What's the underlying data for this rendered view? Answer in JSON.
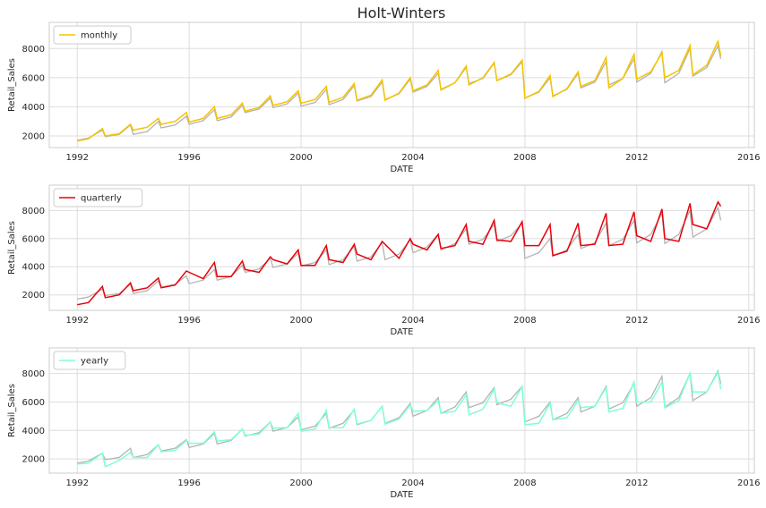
{
  "chart_data": {
    "type": "line",
    "title": "Holt-Winters",
    "source_color": "#b3b3b3",
    "xlim": [
      1991.0,
      2016.2
    ],
    "x_ticks": [
      1992,
      1996,
      2000,
      2004,
      2008,
      2012,
      2016
    ],
    "x_tick_labels": [
      "1992",
      "1996",
      "2000",
      "2004",
      "2008",
      "2012",
      "2016"
    ],
    "source_series": {
      "x": [
        1992.0,
        1992.4,
        1992.9,
        1993.0,
        1993.5,
        1993.9,
        1994.0,
        1994.5,
        1994.9,
        1995.0,
        1995.5,
        1995.9,
        1996.0,
        1996.5,
        1996.9,
        1997.0,
        1997.5,
        1997.9,
        1998.0,
        1998.5,
        1998.9,
        1999.0,
        1999.5,
        1999.9,
        2000.0,
        2000.5,
        2000.9,
        2001.0,
        2001.5,
        2001.9,
        2002.0,
        2002.5,
        2002.9,
        2003.0,
        2003.5,
        2003.9,
        2004.0,
        2004.5,
        2004.9,
        2005.0,
        2005.5,
        2005.9,
        2006.0,
        2006.5,
        2006.9,
        2007.0,
        2007.5,
        2007.9,
        2008.0,
        2008.5,
        2008.9,
        2009.0,
        2009.5,
        2009.9,
        2010.0,
        2010.5,
        2010.9,
        2011.0,
        2011.5,
        2011.9,
        2012.0,
        2012.5,
        2012.9,
        2013.0,
        2013.5,
        2013.9,
        2014.0,
        2014.5,
        2014.9,
        2015.0
      ],
      "y": [
        1700,
        1850,
        2400,
        1950,
        2100,
        2750,
        2100,
        2300,
        3000,
        2550,
        2750,
        3350,
        2800,
        3050,
        3800,
        3050,
        3300,
        4100,
        3600,
        3850,
        4600,
        3950,
        4200,
        4950,
        4050,
        4300,
        5200,
        4150,
        4500,
        5450,
        4400,
        4700,
        5700,
        4500,
        4900,
        5900,
        5000,
        5400,
        6300,
        5200,
        5650,
        6700,
        5600,
        5950,
        7000,
        5800,
        6200,
        7100,
        4600,
        5000,
        6000,
        4750,
        5200,
        6300,
        5300,
        5700,
        7100,
        5500,
        5950,
        7300,
        5700,
        6300,
        7800,
        5650,
        6300,
        8000,
        6100,
        6700,
        8200,
        7300
      ]
    },
    "panels": [
      {
        "name": "monthly",
        "color": "#f5c400",
        "ylabel": "Retail_Sales",
        "xlabel": "DATE",
        "ylim": [
          1200,
          9800
        ],
        "y_ticks": [
          2000,
          4000,
          6000,
          8000
        ],
        "y_tick_labels": [
          "2000",
          "4000",
          "6000",
          "8000"
        ],
        "legend": "upper-left",
        "series": {
          "x": [
            1992.0,
            1992.4,
            1992.9,
            1993.0,
            1993.5,
            1993.9,
            1994.0,
            1994.5,
            1994.9,
            1995.0,
            1995.5,
            1995.9,
            1996.0,
            1996.5,
            1996.9,
            1997.0,
            1997.5,
            1997.9,
            1998.0,
            1998.5,
            1998.9,
            1999.0,
            1999.5,
            1999.9,
            2000.0,
            2000.5,
            2000.9,
            2001.0,
            2001.5,
            2001.9,
            2002.0,
            2002.5,
            2002.9,
            2003.0,
            2003.5,
            2003.9,
            2004.0,
            2004.5,
            2004.9,
            2005.0,
            2005.5,
            2005.9,
            2006.0,
            2006.5,
            2006.9,
            2007.0,
            2007.5,
            2007.9,
            2008.0,
            2008.5,
            2008.9,
            2009.0,
            2009.5,
            2009.9,
            2010.0,
            2010.5,
            2010.9,
            2011.0,
            2011.5,
            2011.9,
            2012.0,
            2012.5,
            2012.9,
            2013.0,
            2013.5,
            2013.9,
            2014.0,
            2014.5,
            2014.9,
            2015.0
          ],
          "y": [
            1650,
            1800,
            2500,
            2000,
            2150,
            2800,
            2400,
            2600,
            3200,
            2800,
            3000,
            3600,
            2950,
            3200,
            4000,
            3200,
            3450,
            4250,
            3700,
            3950,
            4750,
            4100,
            4350,
            5100,
            4250,
            4500,
            5400,
            4300,
            4650,
            5600,
            4450,
            4800,
            5850,
            4450,
            4950,
            6000,
            5100,
            5500,
            6500,
            5150,
            5650,
            6800,
            5500,
            6000,
            7050,
            5800,
            6250,
            7200,
            4600,
            5050,
            6150,
            4700,
            5250,
            6400,
            5400,
            5800,
            7400,
            5300,
            5950,
            7600,
            5900,
            6400,
            7700,
            6000,
            6500,
            8200,
            6200,
            6850,
            8500,
            7500
          ]
        }
      },
      {
        "name": "quarterly",
        "color": "#e8000b",
        "ylabel": "Retail_Sales",
        "xlabel": "DATE",
        "ylim": [
          900,
          9800
        ],
        "y_ticks": [
          2000,
          4000,
          6000,
          8000
        ],
        "y_tick_labels": [
          "2000",
          "4000",
          "6000",
          "8000"
        ],
        "legend": "upper-left",
        "series": {
          "x": [
            1992.0,
            1992.4,
            1992.9,
            1993.0,
            1993.5,
            1993.9,
            1994.0,
            1994.5,
            1994.9,
            1995.0,
            1995.5,
            1995.9,
            1996.0,
            1996.5,
            1996.9,
            1997.0,
            1997.5,
            1997.9,
            1998.0,
            1998.5,
            1998.9,
            1999.0,
            1999.5,
            1999.9,
            2000.0,
            2000.5,
            2000.9,
            2001.0,
            2001.5,
            2001.9,
            2002.0,
            2002.5,
            2002.9,
            2003.0,
            2003.5,
            2003.9,
            2004.0,
            2004.5,
            2004.9,
            2005.0,
            2005.5,
            2005.9,
            2006.0,
            2006.5,
            2006.9,
            2007.0,
            2007.5,
            2007.9,
            2008.0,
            2008.5,
            2008.9,
            2009.0,
            2009.5,
            2009.9,
            2010.0,
            2010.5,
            2010.9,
            2011.0,
            2011.5,
            2011.9,
            2012.0,
            2012.5,
            2012.9,
            2013.0,
            2013.5,
            2013.9,
            2014.0,
            2014.5,
            2014.9,
            2015.0
          ],
          "y": [
            1300,
            1450,
            2600,
            1800,
            2000,
            2850,
            2300,
            2500,
            3200,
            2500,
            2700,
            3700,
            3600,
            3150,
            4300,
            3300,
            3300,
            4400,
            3800,
            3600,
            4700,
            4500,
            4200,
            5200,
            4100,
            4100,
            5500,
            4500,
            4300,
            5600,
            4900,
            4500,
            5800,
            5600,
            4600,
            6000,
            5600,
            5200,
            6300,
            5300,
            5500,
            7000,
            5800,
            5600,
            7300,
            5900,
            5800,
            7200,
            5500,
            5500,
            7000,
            4800,
            5100,
            7100,
            5500,
            5600,
            7800,
            5500,
            5600,
            7900,
            6200,
            5800,
            8100,
            6000,
            5800,
            8500,
            7000,
            6700,
            8600,
            8300
          ]
        }
      },
      {
        "name": "yearly",
        "color": "#7fffd4",
        "ylabel": "Retail_Sales",
        "xlabel": "DATE",
        "ylim": [
          1000,
          9800
        ],
        "y_ticks": [
          2000,
          4000,
          6000,
          8000
        ],
        "y_tick_labels": [
          "2000",
          "4000",
          "6000",
          "8000"
        ],
        "legend": "upper-left",
        "series": {
          "x": [
            1992.0,
            1992.4,
            1992.9,
            1993.0,
            1993.5,
            1993.9,
            1994.0,
            1994.5,
            1994.9,
            1995.0,
            1995.5,
            1995.9,
            1996.0,
            1996.5,
            1996.9,
            1997.0,
            1997.5,
            1997.9,
            1998.0,
            1998.5,
            1998.9,
            1999.0,
            1999.5,
            1999.9,
            2000.0,
            2000.5,
            2000.9,
            2001.0,
            2001.5,
            2001.9,
            2002.0,
            2002.5,
            2002.9,
            2003.0,
            2003.5,
            2003.9,
            2004.0,
            2004.5,
            2004.9,
            2005.0,
            2005.5,
            2005.9,
            2006.0,
            2006.5,
            2006.9,
            2007.0,
            2007.5,
            2007.9,
            2008.0,
            2008.5,
            2008.9,
            2009.0,
            2009.5,
            2009.9,
            2010.0,
            2010.5,
            2010.9,
            2011.0,
            2011.5,
            2011.9,
            2012.0,
            2012.5,
            2012.9,
            2013.0,
            2013.5,
            2013.9,
            2014.0,
            2014.5,
            2014.9,
            2015.0
          ],
          "y": [
            1650,
            1700,
            2400,
            1450,
            1900,
            2450,
            2100,
            2100,
            3000,
            2500,
            2600,
            3300,
            3100,
            3100,
            3900,
            3250,
            3350,
            4100,
            3650,
            3750,
            4600,
            4150,
            4200,
            5200,
            3950,
            4100,
            5400,
            4200,
            4200,
            5500,
            4450,
            4700,
            5700,
            4450,
            4800,
            5800,
            5350,
            5400,
            6100,
            5200,
            5350,
            6500,
            5100,
            5500,
            6900,
            5950,
            5700,
            7100,
            4400,
            4500,
            5900,
            4750,
            4900,
            6100,
            5600,
            5700,
            7000,
            5300,
            5550,
            7400,
            6000,
            6000,
            7400,
            5600,
            6100,
            8000,
            6700,
            6700,
            8100,
            6900
          ]
        }
      }
    ]
  }
}
